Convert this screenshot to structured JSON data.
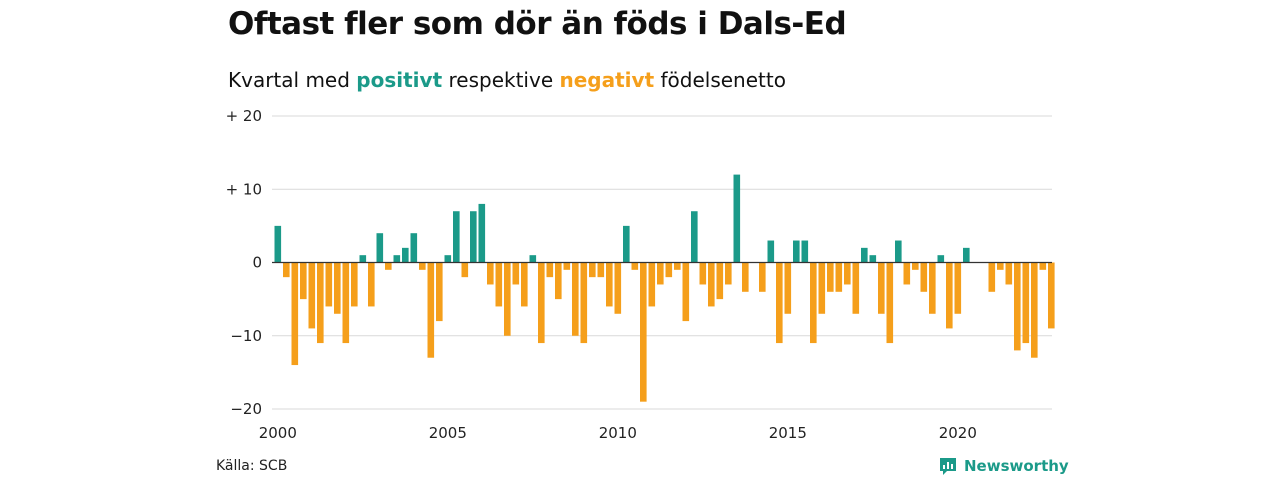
{
  "title": "Oftast fler som dör än föds i Dals-Ed",
  "subtitle": {
    "prefix": "Kvartal med",
    "positive_word": "positivt",
    "middle": "respektive",
    "negative_word": "negativt",
    "suffix": "födelsenetto"
  },
  "source": "Källa: SCB",
  "brand": {
    "name": "Newsworthy",
    "icon": "newsworthy-logo-icon"
  },
  "colors": {
    "positive": "#1b9a89",
    "negative": "#f59f1b",
    "grid": "#d9d9d9",
    "zero_line": "#333333"
  },
  "chart_data": {
    "type": "bar",
    "x_start": "2000-Q1",
    "frequency": "quarterly",
    "ylim": [
      -20,
      20
    ],
    "yticks": [
      {
        "value": 20,
        "label": "+ 20"
      },
      {
        "value": 10,
        "label": "+ 10"
      },
      {
        "value": 0,
        "label": "0"
      },
      {
        "value": -10,
        "label": "−10"
      },
      {
        "value": -20,
        "label": "−20"
      }
    ],
    "xticks": [
      "2000",
      "2005",
      "2010",
      "2015",
      "2020"
    ],
    "grid": true,
    "values": [
      5,
      -2,
      -14,
      -5,
      -9,
      -11,
      -6,
      -7,
      -11,
      -6,
      1,
      -6,
      4,
      -1,
      1,
      2,
      4,
      -1,
      -13,
      -8,
      1,
      7,
      -2,
      7,
      8,
      -3,
      -6,
      -10,
      -3,
      -6,
      1,
      -11,
      -2,
      -5,
      -1,
      -10,
      -11,
      -2,
      -2,
      -6,
      -7,
      5,
      -1,
      -19,
      -6,
      -3,
      -2,
      -1,
      -8,
      7,
      -3,
      -6,
      -5,
      -3,
      12,
      -4,
      0,
      -4,
      3,
      -11,
      -7,
      3,
      3,
      -11,
      -7,
      -4,
      -4,
      -3,
      -7,
      2,
      1,
      -7,
      -11,
      3,
      -3,
      -1,
      -4,
      -7,
      1,
      -9,
      -7,
      2,
      0,
      0,
      -4,
      -1,
      -3,
      -12,
      -11,
      -13,
      -1,
      -9
    ]
  }
}
